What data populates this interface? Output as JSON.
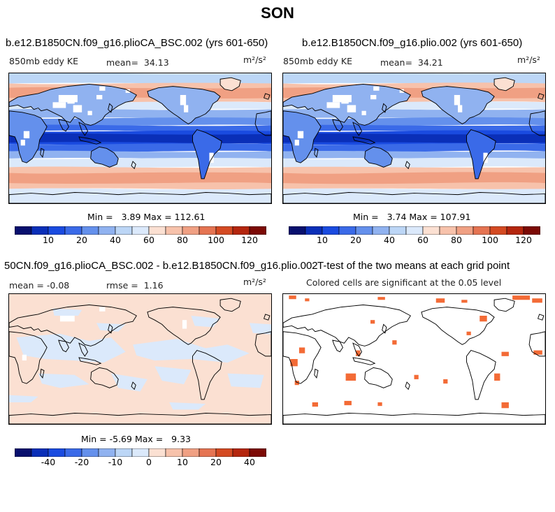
{
  "title": "SON",
  "colors": {
    "scale": [
      "#08106e",
      "#0a2fb8",
      "#1a4be0",
      "#3a6ae8",
      "#6490ec",
      "#90b2f0",
      "#bcd6f6",
      "#dbe9fb",
      "#fbe0d2",
      "#f7c2ab",
      "#f0a083",
      "#e57452",
      "#d44a22",
      "#b4260e",
      "#7c0a05"
    ],
    "sig": "#f36b36",
    "coast": "#000000"
  },
  "units": "m²/s²",
  "chart_data": [
    {
      "type": "heatmap",
      "title": "b.e12.B1850CN.f09_g16.plioCA_BSC.002 (yrs 601-650)",
      "field": "850mb eddy KE",
      "mean_label": "mean=",
      "mean": "34.13",
      "min_label": "Min =",
      "min": "3.89",
      "max_label": "Max =",
      "max": "112.61",
      "colorbar_ticks": [
        "10",
        "20",
        "40",
        "60",
        "80",
        "100",
        "120"
      ]
    },
    {
      "type": "heatmap",
      "title": "b.e12.B1850CN.f09_g16.plio.002 (yrs 601-650)",
      "field": "850mb eddy KE",
      "mean_label": "mean=",
      "mean": "34.21",
      "min_label": "Min =",
      "min": "3.74",
      "max_label": "Max =",
      "max": "107.91",
      "colorbar_ticks": [
        "10",
        "20",
        "40",
        "60",
        "80",
        "100",
        "120"
      ]
    },
    {
      "type": "heatmap",
      "title": "50CN.f09_g16.plioCA_BSC.002 - b.e12.B1850CN.f09_g16.plio.002",
      "mean_label": "mean =",
      "mean": "-0.08",
      "rmse_label": "rmse =",
      "rmse": "1.16",
      "min_label": "Min =",
      "min": "-5.69",
      "max_label": "Max =",
      "max": "9.33",
      "colorbar_ticks": [
        "-40",
        "-20",
        "-10",
        "0",
        "10",
        "20",
        "40"
      ]
    },
    {
      "type": "heatmap",
      "title": "T-test of the two means at each grid point",
      "subtitle": "Colored cells are significant at the 0.05 level"
    }
  ]
}
